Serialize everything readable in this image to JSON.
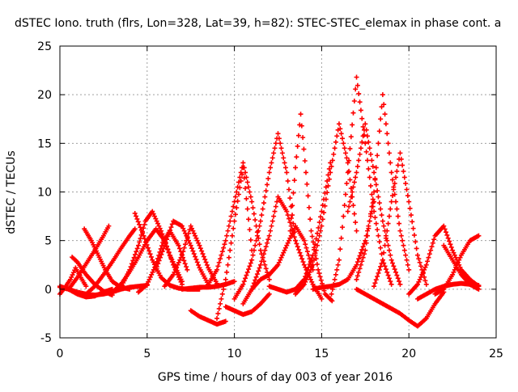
{
  "chart_data": {
    "type": "scatter",
    "title": "dSTEC Iono. truth (flrs, Lon=328, Lat=39, h=82): STEC-STEC_elemax in phase cont. a",
    "xlabel": "GPS time / hours of day 003 of year 2016",
    "ylabel": "dSTEC  / TECUs",
    "xlim": [
      0,
      25
    ],
    "ylim": [
      -5,
      25
    ],
    "x_ticks": [
      0,
      5,
      10,
      15,
      20,
      25
    ],
    "y_ticks": [
      -5,
      0,
      5,
      10,
      15,
      20,
      25
    ],
    "x_tick_labels": [
      "0",
      "5",
      "10",
      "15",
      "20",
      "25"
    ],
    "y_tick_labels": [
      "-5",
      "0",
      "5",
      "10",
      "15",
      "20",
      "25"
    ],
    "grid": true,
    "marker": "plus",
    "color": "#ff0000",
    "series": [
      {
        "x": [
          0.0,
          0.3,
          0.6,
          0.9,
          1.2,
          1.5
        ],
        "y": [
          -0.5,
          0.2,
          1.0,
          2.2,
          1.2,
          0.3
        ]
      },
      {
        "x": [
          0.0,
          0.5,
          1.0,
          1.5,
          2.0,
          2.5,
          3.0
        ],
        "y": [
          0.3,
          0.0,
          -0.5,
          -0.8,
          -0.7,
          -0.3,
          0.0
        ]
      },
      {
        "x": [
          0.0,
          0.5,
          1.0,
          1.5,
          2.0,
          2.5,
          3.0,
          3.5,
          4.0,
          4.5,
          5.0
        ],
        "y": [
          0.2,
          0.0,
          -0.3,
          -0.5,
          -0.6,
          -0.5,
          -0.3,
          0.0,
          0.2,
          0.3,
          0.4
        ]
      },
      {
        "x": [
          0.7,
          1.0,
          1.5,
          2.0,
          2.5,
          3.0
        ],
        "y": [
          3.3,
          2.8,
          1.5,
          0.5,
          -0.2,
          -0.6
        ]
      },
      {
        "x": [
          1.4,
          1.8,
          2.2,
          2.6,
          3.0,
          3.5,
          4.0
        ],
        "y": [
          6.2,
          5.0,
          3.5,
          2.0,
          0.8,
          0.2,
          0.0
        ]
      },
      {
        "x": [
          0.5,
          1.0,
          1.5,
          2.0,
          2.5,
          2.8
        ],
        "y": [
          0.0,
          1.2,
          2.6,
          4.0,
          5.5,
          6.5
        ]
      },
      {
        "x": [
          1.5,
          2.0,
          2.5,
          3.0,
          3.5,
          4.0,
          4.3
        ],
        "y": [
          -0.5,
          0.3,
          1.5,
          2.8,
          4.2,
          5.5,
          6.2
        ]
      },
      {
        "x": [
          3.0,
          3.5,
          4.0,
          4.5,
          5.0,
          5.5,
          6.0,
          6.5,
          7.0
        ],
        "y": [
          -0.3,
          0.5,
          1.8,
          3.3,
          5.0,
          6.2,
          5.0,
          2.5,
          0.5
        ]
      },
      {
        "x": [
          4.3,
          4.8,
          5.3,
          5.8,
          6.3,
          6.8,
          7.3,
          8.0
        ],
        "y": [
          7.8,
          5.5,
          3.0,
          1.2,
          0.4,
          0.1,
          0.0,
          0.0
        ]
      },
      {
        "x": [
          3.5,
          4.0,
          4.5,
          4.9,
          5.3,
          5.8,
          6.3,
          7.0
        ],
        "y": [
          0.2,
          2.0,
          4.5,
          7.0,
          8.0,
          6.0,
          3.5,
          0.8
        ]
      },
      {
        "x": [
          4.5,
          5.0,
          5.5,
          5.9,
          6.3,
          6.8,
          7.3
        ],
        "y": [
          -0.3,
          0.5,
          2.5,
          4.8,
          6.0,
          4.5,
          2.0
        ]
      },
      {
        "x": [
          5.5,
          6.0,
          6.5,
          7.0,
          7.5,
          8.0,
          8.5
        ],
        "y": [
          2.0,
          4.5,
          7.0,
          6.5,
          4.5,
          2.2,
          0.5
        ]
      },
      {
        "x": [
          6.0,
          6.5,
          7.0,
          7.5,
          8.0,
          8.5,
          9.0
        ],
        "y": [
          0.3,
          1.5,
          3.5,
          6.5,
          4.5,
          2.2,
          0.6
        ]
      },
      {
        "x": [
          7.0,
          7.5,
          8.0,
          8.5,
          9.0,
          9.5,
          10.0
        ],
        "y": [
          0.0,
          0.1,
          0.2,
          0.2,
          0.3,
          0.5,
          0.8
        ]
      },
      {
        "x": [
          7.5,
          8.0,
          8.5,
          9.0,
          9.5
        ],
        "y": [
          -2.2,
          -2.8,
          -3.2,
          -3.6,
          -3.3
        ]
      },
      {
        "x": [
          8.5,
          9.0,
          9.5,
          10.0,
          10.5,
          11.0,
          11.5,
          12.0
        ],
        "y": [
          0.5,
          2.0,
          5.0,
          9.0,
          13.0,
          9.0,
          4.0,
          1.0
        ]
      },
      {
        "x": [
          9.0,
          9.5,
          10.0,
          10.5,
          11.0
        ],
        "y": [
          -3.0,
          1.0,
          7.0,
          12.5,
          4.0
        ]
      },
      {
        "x": [
          9.5,
          10.0,
          10.5,
          11.0,
          11.5,
          12.0
        ],
        "y": [
          -1.8,
          -2.2,
          -2.6,
          -2.3,
          -1.5,
          -0.5
        ]
      },
      {
        "x": [
          10.0,
          10.5,
          11.0,
          11.5,
          12.0,
          12.5,
          13.0,
          13.5
        ],
        "y": [
          -1.0,
          0.5,
          3.0,
          7.0,
          12.0,
          16.0,
          12.0,
          5.0
        ]
      },
      {
        "x": [
          10.5,
          11.0,
          11.5,
          12.0,
          12.5,
          13.0,
          13.5,
          14.0,
          14.5,
          15.0
        ],
        "y": [
          -1.5,
          0.0,
          2.5,
          5.5,
          9.5,
          8.0,
          5.0,
          2.5,
          0.5,
          -1.0
        ]
      },
      {
        "x": [
          11.0,
          11.5,
          12.0,
          12.5,
          13.0,
          13.5,
          14.0,
          14.5
        ],
        "y": [
          0.0,
          1.0,
          1.5,
          2.5,
          4.5,
          6.5,
          5.0,
          2.0
        ]
      },
      {
        "x": [
          12.0,
          12.5,
          13.0,
          13.5,
          14.0,
          14.5,
          15.0,
          15.5
        ],
        "y": [
          0.3,
          0.0,
          -0.3,
          0.0,
          1.0,
          3.5,
          8.0,
          13.0
        ]
      },
      {
        "x": [
          13.2,
          13.5,
          13.8,
          14.1,
          14.4,
          14.8,
          15.2,
          15.6
        ],
        "y": [
          6.0,
          12.5,
          18.0,
          12.0,
          6.0,
          2.0,
          -0.5,
          -1.2
        ]
      },
      {
        "x": [
          13.5,
          14.0,
          14.5,
          15.0,
          15.5,
          16.0,
          16.5,
          17.0
        ],
        "y": [
          -0.5,
          0.5,
          2.5,
          6.5,
          12.0,
          17.0,
          13.0,
          6.0
        ]
      },
      {
        "x": [
          14.5,
          15.0,
          15.5,
          16.0,
          16.5,
          17.0,
          17.5,
          18.0
        ],
        "y": [
          0.0,
          0.2,
          0.3,
          0.5,
          1.0,
          2.5,
          5.0,
          9.0
        ]
      },
      {
        "x": [
          15.5,
          16.0,
          16.5,
          17.0,
          17.5,
          18.0,
          18.5,
          19.0
        ],
        "y": [
          -1.0,
          3.0,
          12.0,
          21.8,
          15.0,
          8.0,
          3.0,
          0.5
        ]
      },
      {
        "x": [
          16.5,
          17.0,
          17.5,
          18.0,
          18.5,
          19.0,
          19.5
        ],
        "y": [
          8.0,
          12.0,
          17.0,
          12.0,
          7.0,
          3.0,
          0.5
        ]
      },
      {
        "x": [
          17.0,
          17.5,
          18.0,
          18.5,
          19.0,
          19.5,
          20.0
        ],
        "y": [
          1.0,
          4.0,
          10.0,
          20.0,
          12.0,
          6.0,
          2.0
        ]
      },
      {
        "x": [
          18.0,
          18.5,
          19.0,
          19.5,
          20.0,
          20.5,
          21.0
        ],
        "y": [
          0.3,
          3.0,
          9.0,
          14.0,
          9.0,
          3.5,
          0.5
        ]
      },
      {
        "x": [
          17.0,
          17.5,
          18.0,
          18.5,
          19.0,
          19.5,
          20.0,
          20.5,
          21.0,
          21.5,
          22.0
        ],
        "y": [
          0.0,
          -0.5,
          -1.0,
          -1.5,
          -2.0,
          -2.5,
          -3.2,
          -3.8,
          -3.0,
          -1.5,
          -0.3
        ]
      },
      {
        "x": [
          20.0,
          20.5,
          21.0,
          21.5,
          22.0,
          22.5,
          23.0,
          23.5,
          24.0
        ],
        "y": [
          -0.5,
          0.5,
          2.5,
          5.5,
          6.5,
          4.0,
          2.0,
          1.0,
          0.3
        ]
      },
      {
        "x": [
          21.5,
          22.0,
          22.5,
          23.0,
          23.5,
          24.0
        ],
        "y": [
          -0.5,
          0.0,
          1.5,
          3.5,
          5.0,
          5.5
        ]
      },
      {
        "x": [
          22.0,
          22.5,
          23.0,
          23.5,
          24.0
        ],
        "y": [
          4.5,
          3.0,
          1.5,
          0.5,
          0.0
        ]
      },
      {
        "x": [
          20.5,
          21.0,
          21.5,
          22.0,
          22.5,
          23.0,
          23.5,
          24.0
        ],
        "y": [
          -1.0,
          -0.5,
          0.0,
          0.3,
          0.5,
          0.6,
          0.5,
          0.4
        ]
      }
    ]
  }
}
